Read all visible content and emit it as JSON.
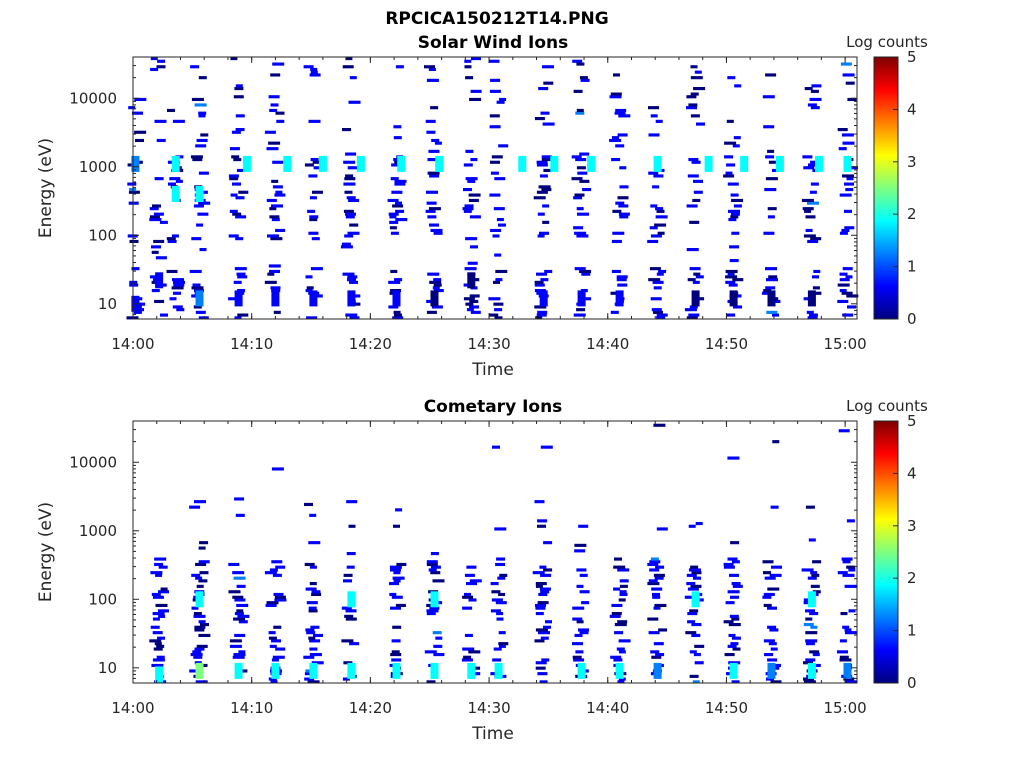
{
  "figure_title": "RPCICA150212T14.PNG",
  "colors": {
    "colormap": [
      "#00007f",
      "#0000ff",
      "#007fff",
      "#00ffff",
      "#7fff7f",
      "#ffff00",
      "#ff7f00",
      "#ff0000",
      "#7f0000"
    ],
    "axis": "#262626"
  },
  "chart_data": [
    {
      "type": "heatmap",
      "title": "Solar Wind Ions",
      "xlabel": "Time",
      "ylabel": "Energy (eV)",
      "yscale": "log",
      "ylim": [
        6,
        40000
      ],
      "xlim": [
        "14:00",
        "15:01"
      ],
      "xticks": [
        "14:00",
        "14:10",
        "14:20",
        "14:30",
        "14:40",
        "14:50",
        "15:00"
      ],
      "yticks": [
        "10",
        "100",
        "1000",
        "10000"
      ],
      "colorbar": {
        "label": "Log counts",
        "ticks": [
          "0",
          "1",
          "2",
          "3",
          "4",
          "5"
        ],
        "range": [
          0,
          5
        ]
      },
      "scan_times_min": [
        0.2,
        2.2,
        3.6,
        5.6,
        8.9,
        12.0,
        15.2,
        18.4,
        22.2,
        25.4,
        28.5,
        30.8,
        34.6,
        37.8,
        41.0,
        44.2,
        47.4,
        50.6,
        53.8,
        57.2,
        60.2
      ],
      "cells": [
        {
          "t": 0.2,
          "e": 10,
          "v": 0.5
        },
        {
          "t": 0.2,
          "e": 1100,
          "v": 1.5
        },
        {
          "t": 2.2,
          "e": 22,
          "v": 0.4
        },
        {
          "t": 3.6,
          "e": 1100,
          "v": 1.8
        },
        {
          "t": 3.6,
          "e": 400,
          "v": 2.0
        },
        {
          "t": 5.6,
          "e": 12,
          "v": 1.5
        },
        {
          "t": 5.6,
          "e": 400,
          "v": 1.7
        },
        {
          "t": 8.9,
          "e": 12,
          "v": 0.5
        },
        {
          "t": 9.6,
          "e": 1100,
          "v": 1.9
        },
        {
          "t": 12.0,
          "e": 12,
          "v": 0.5
        },
        {
          "t": 13.0,
          "e": 1100,
          "v": 1.8
        },
        {
          "t": 15.2,
          "e": 12,
          "v": 0.4
        },
        {
          "t": 16.0,
          "e": 1100,
          "v": 1.9
        },
        {
          "t": 18.4,
          "e": 12,
          "v": 0.4
        },
        {
          "t": 19.2,
          "e": 1100,
          "v": 1.9
        },
        {
          "t": 22.2,
          "e": 12,
          "v": 0.4
        },
        {
          "t": 22.6,
          "e": 1100,
          "v": 1.9
        },
        {
          "t": 25.4,
          "e": 12,
          "v": 0.3
        },
        {
          "t": 25.8,
          "e": 1100,
          "v": 1.8
        },
        {
          "t": 28.5,
          "e": 22,
          "v": 0.3
        },
        {
          "t": 32.8,
          "e": 1100,
          "v": 1.9
        },
        {
          "t": 34.6,
          "e": 12,
          "v": 0.4
        },
        {
          "t": 35.5,
          "e": 1100,
          "v": 2.0
        },
        {
          "t": 37.8,
          "e": 12,
          "v": 0.8
        },
        {
          "t": 38.6,
          "e": 1100,
          "v": 2.0
        },
        {
          "t": 41.0,
          "e": 12,
          "v": 0.4
        },
        {
          "t": 44.2,
          "e": 1100,
          "v": 1.9
        },
        {
          "t": 47.4,
          "e": 12,
          "v": 0.3
        },
        {
          "t": 48.5,
          "e": 1100,
          "v": 1.9
        },
        {
          "t": 50.6,
          "e": 12,
          "v": 0.3
        },
        {
          "t": 51.5,
          "e": 1100,
          "v": 1.9
        },
        {
          "t": 53.8,
          "e": 12,
          "v": 0.3
        },
        {
          "t": 54.5,
          "e": 1100,
          "v": 1.8
        },
        {
          "t": 57.2,
          "e": 12,
          "v": 0.3
        },
        {
          "t": 57.8,
          "e": 1100,
          "v": 1.9
        },
        {
          "t": 60.2,
          "e": 1100,
          "v": 1.7
        }
      ]
    },
    {
      "type": "heatmap",
      "title": "Cometary Ions",
      "xlabel": "Time",
      "ylabel": "Energy (eV)",
      "yscale": "log",
      "ylim": [
        6,
        40000
      ],
      "xlim": [
        "14:00",
        "15:01"
      ],
      "xticks": [
        "14:00",
        "14:10",
        "14:20",
        "14:30",
        "14:40",
        "14:50",
        "15:00"
      ],
      "yticks": [
        "10",
        "100",
        "1000",
        "10000"
      ],
      "colorbar": {
        "label": "Log counts",
        "ticks": [
          "0",
          "1",
          "2",
          "3",
          "4",
          "5"
        ],
        "range": [
          0,
          5
        ]
      },
      "scan_times_min": [
        2.2,
        5.6,
        8.9,
        12.0,
        15.2,
        18.4,
        22.2,
        25.4,
        28.5,
        30.8,
        34.6,
        37.8,
        41.0,
        44.2,
        47.4,
        50.6,
        53.8,
        57.2,
        60.2
      ],
      "cells": [
        {
          "t": 2.2,
          "e": 8,
          "v": 1.6
        },
        {
          "t": 5.6,
          "e": 9,
          "v": 2.4
        },
        {
          "t": 8.9,
          "e": 9,
          "v": 2.1
        },
        {
          "t": 12.0,
          "e": 9,
          "v": 2.0
        },
        {
          "t": 15.2,
          "e": 9,
          "v": 1.8
        },
        {
          "t": 18.4,
          "e": 9,
          "v": 1.8
        },
        {
          "t": 22.2,
          "e": 9,
          "v": 1.7
        },
        {
          "t": 25.4,
          "e": 9,
          "v": 2.0
        },
        {
          "t": 28.5,
          "e": 9,
          "v": 1.9
        },
        {
          "t": 30.8,
          "e": 9,
          "v": 1.6
        },
        {
          "t": 37.8,
          "e": 9,
          "v": 2.0
        },
        {
          "t": 41.0,
          "e": 9,
          "v": 1.8
        },
        {
          "t": 44.2,
          "e": 9,
          "v": 1.0
        },
        {
          "t": 50.6,
          "e": 9,
          "v": 1.7
        },
        {
          "t": 53.8,
          "e": 9,
          "v": 1.5
        },
        {
          "t": 57.2,
          "e": 9,
          "v": 1.6
        },
        {
          "t": 60.2,
          "e": 9,
          "v": 1.3
        },
        {
          "t": 5.6,
          "e": 100,
          "v": 1.6
        },
        {
          "t": 18.4,
          "e": 100,
          "v": 1.8
        },
        {
          "t": 25.4,
          "e": 100,
          "v": 1.7
        },
        {
          "t": 47.4,
          "e": 100,
          "v": 1.6
        },
        {
          "t": 57.2,
          "e": 100,
          "v": 1.9
        }
      ]
    }
  ]
}
